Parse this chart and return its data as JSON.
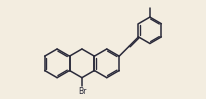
{
  "background_color": "#f3ede0",
  "bond_color": "#2a2a3a",
  "bond_lw": 1.1,
  "text_color": "#2a2a3a",
  "br_label": "Br",
  "figsize": [
    2.06,
    0.99
  ],
  "dpi": 100
}
